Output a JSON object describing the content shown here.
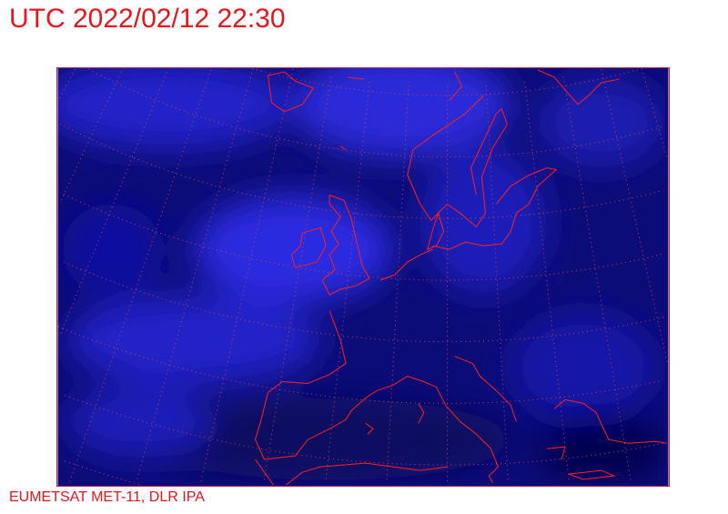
{
  "header": {
    "title": "UTC 2022/02/12 22:30"
  },
  "footer": {
    "credit": "EUMETSAT MET-11, DLR IPA"
  },
  "map": {
    "imagery": "infrared satellite image, blue colour scale",
    "colors": {
      "background": "#0a0a70",
      "cloud": "#2a2ae0",
      "coastline": "#ff2020",
      "graticule": "#d04060",
      "text": "#e8141c"
    }
  }
}
